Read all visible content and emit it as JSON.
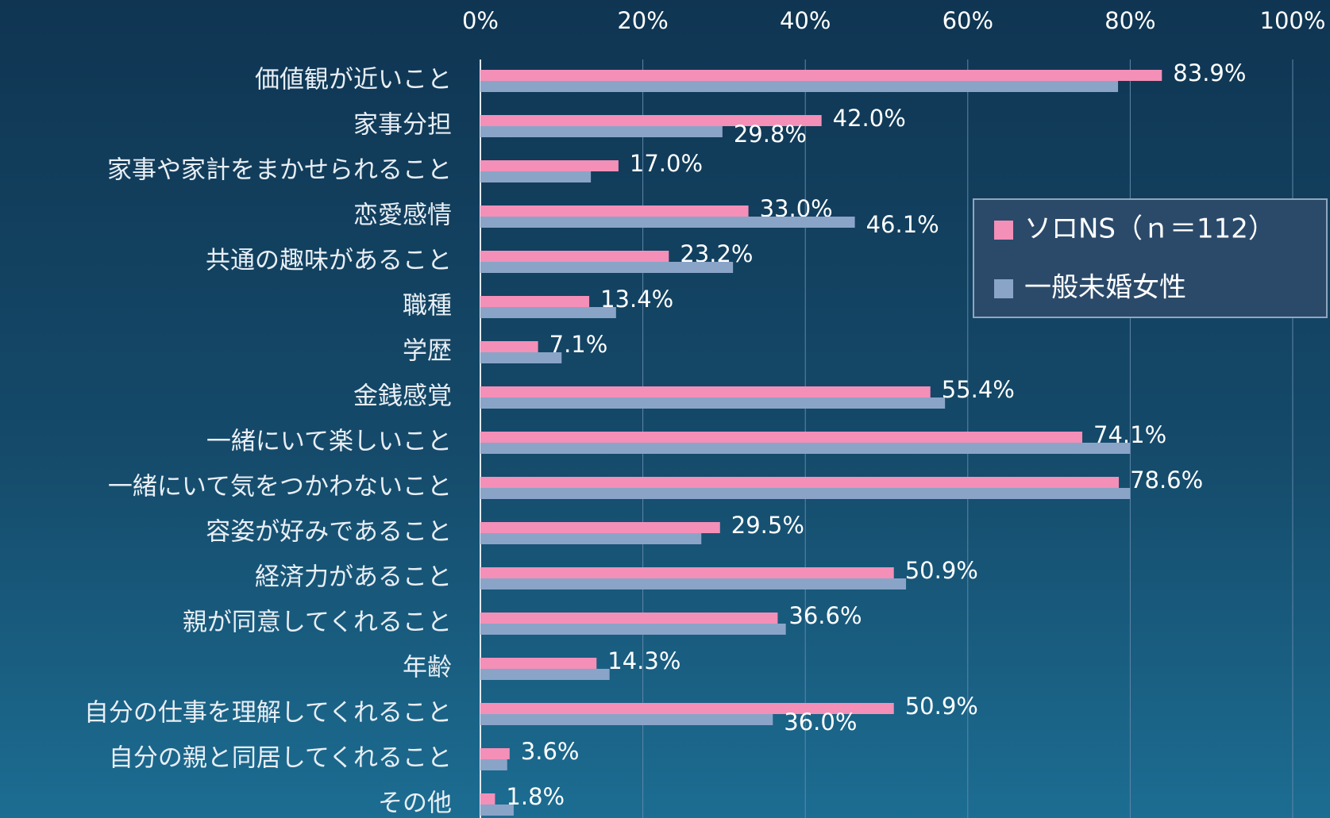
{
  "chart_data": {
    "type": "bar",
    "orientation": "horizontal",
    "categories": [
      "価値観が近いこと",
      "家事分担",
      "家事や家計をまかせられること",
      "恋愛感情",
      "共通の趣味があること",
      "職種",
      "学歴",
      "金銭感覚",
      "一緒にいて楽しいこと",
      "一緒にいて気をつかわないこと",
      "容姿が好みであること",
      "経済力があること",
      "親が同意してくれること",
      "年齢",
      "自分の仕事を理解してくれること",
      "自分の親と同居してくれること",
      "その他"
    ],
    "series": [
      {
        "name": "ソロNS（ｎ＝112）",
        "color": "#f48fb8",
        "values": [
          83.9,
          42.0,
          17.0,
          33.0,
          23.2,
          13.4,
          7.1,
          55.4,
          74.1,
          78.6,
          29.5,
          50.9,
          36.6,
          14.3,
          50.9,
          3.6,
          1.8
        ],
        "value_labels": [
          "83.9%",
          "42.0%",
          "17.0%",
          "33.0%",
          "23.2%",
          "13.4%",
          "7.1%",
          "55.4%",
          "74.1%",
          "78.6%",
          "29.5%",
          "50.9%",
          "36.6%",
          "14.3%",
          "50.9%",
          "3.6%",
          "1.8%"
        ]
      },
      {
        "name": "一般未婚女性",
        "color": "#8aa4c8",
        "values": [
          78.5,
          29.8,
          13.6,
          46.1,
          31.1,
          16.7,
          10.0,
          57.2,
          80.0,
          80.0,
          27.2,
          52.4,
          37.6,
          15.9,
          36.0,
          3.3,
          4.1
        ],
        "value_labels": [
          null,
          "29.8%",
          null,
          "46.1%",
          null,
          null,
          null,
          null,
          null,
          null,
          null,
          null,
          null,
          null,
          "36.0%",
          null,
          null
        ]
      }
    ],
    "xlim": [
      0,
      100
    ],
    "xticks": [
      {
        "value": 0,
        "label": "0%"
      },
      {
        "value": 20,
        "label": "20%"
      },
      {
        "value": 40,
        "label": "40%"
      },
      {
        "value": 60,
        "label": "60%"
      },
      {
        "value": 80,
        "label": "80%"
      },
      {
        "value": 100,
        "label": "100%"
      }
    ],
    "grid": true,
    "legend": "right"
  }
}
